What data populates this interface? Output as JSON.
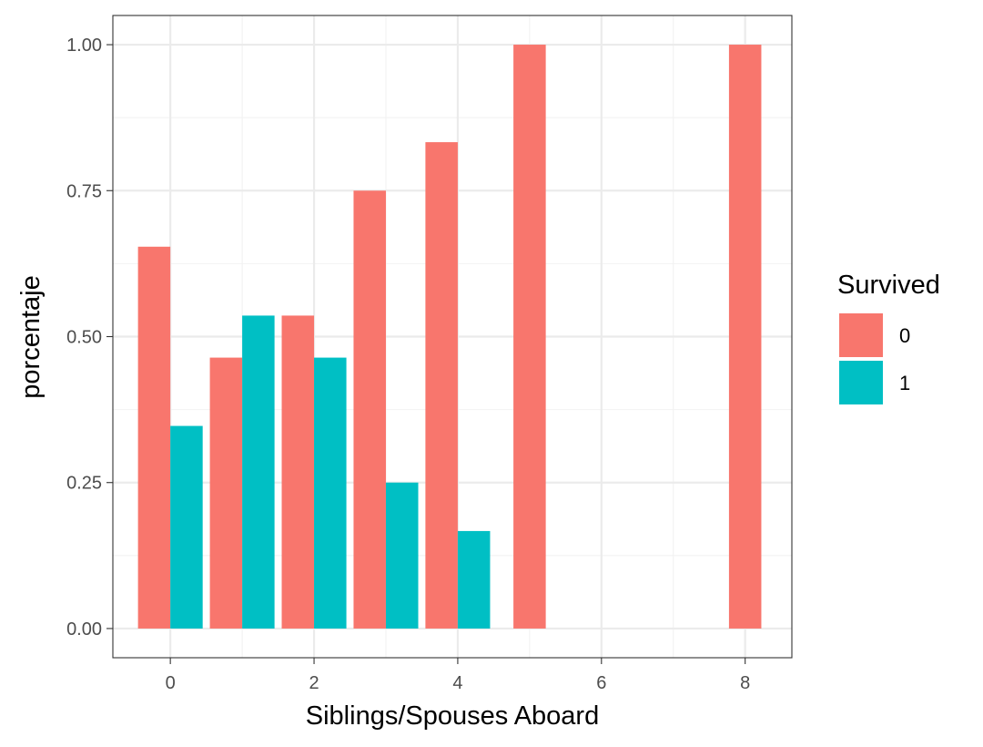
{
  "chart_data": {
    "type": "bar",
    "xlabel": "Siblings/Spouses Aboard",
    "ylabel": "porcentaje",
    "xlim": [
      -0.8,
      8.65
    ],
    "ylim": [
      -0.05,
      1.05
    ],
    "x_ticks": [
      0,
      2,
      4,
      6,
      8
    ],
    "x_tick_labels": [
      "0",
      "2",
      "4",
      "6",
      "8"
    ],
    "y_ticks": [
      0,
      0.25,
      0.5,
      0.75,
      1
    ],
    "y_tick_labels": [
      "0.00",
      "0.25",
      "0.50",
      "0.75",
      "1.00"
    ],
    "grid": true,
    "legend_position": "right",
    "legend": {
      "title": "Survived",
      "entries": [
        "0",
        "1"
      ]
    },
    "series": [
      {
        "name": "0",
        "color": "#F8766D",
        "x": [
          0,
          1,
          2,
          3,
          4,
          5,
          8
        ],
        "values": [
          0.654,
          0.464,
          0.536,
          0.75,
          0.833,
          1.0,
          1.0
        ]
      },
      {
        "name": "1",
        "color": "#00BFC4",
        "x": [
          0,
          1,
          2,
          3,
          4
        ],
        "values": [
          0.347,
          0.536,
          0.464,
          0.25,
          0.167
        ]
      }
    ]
  }
}
